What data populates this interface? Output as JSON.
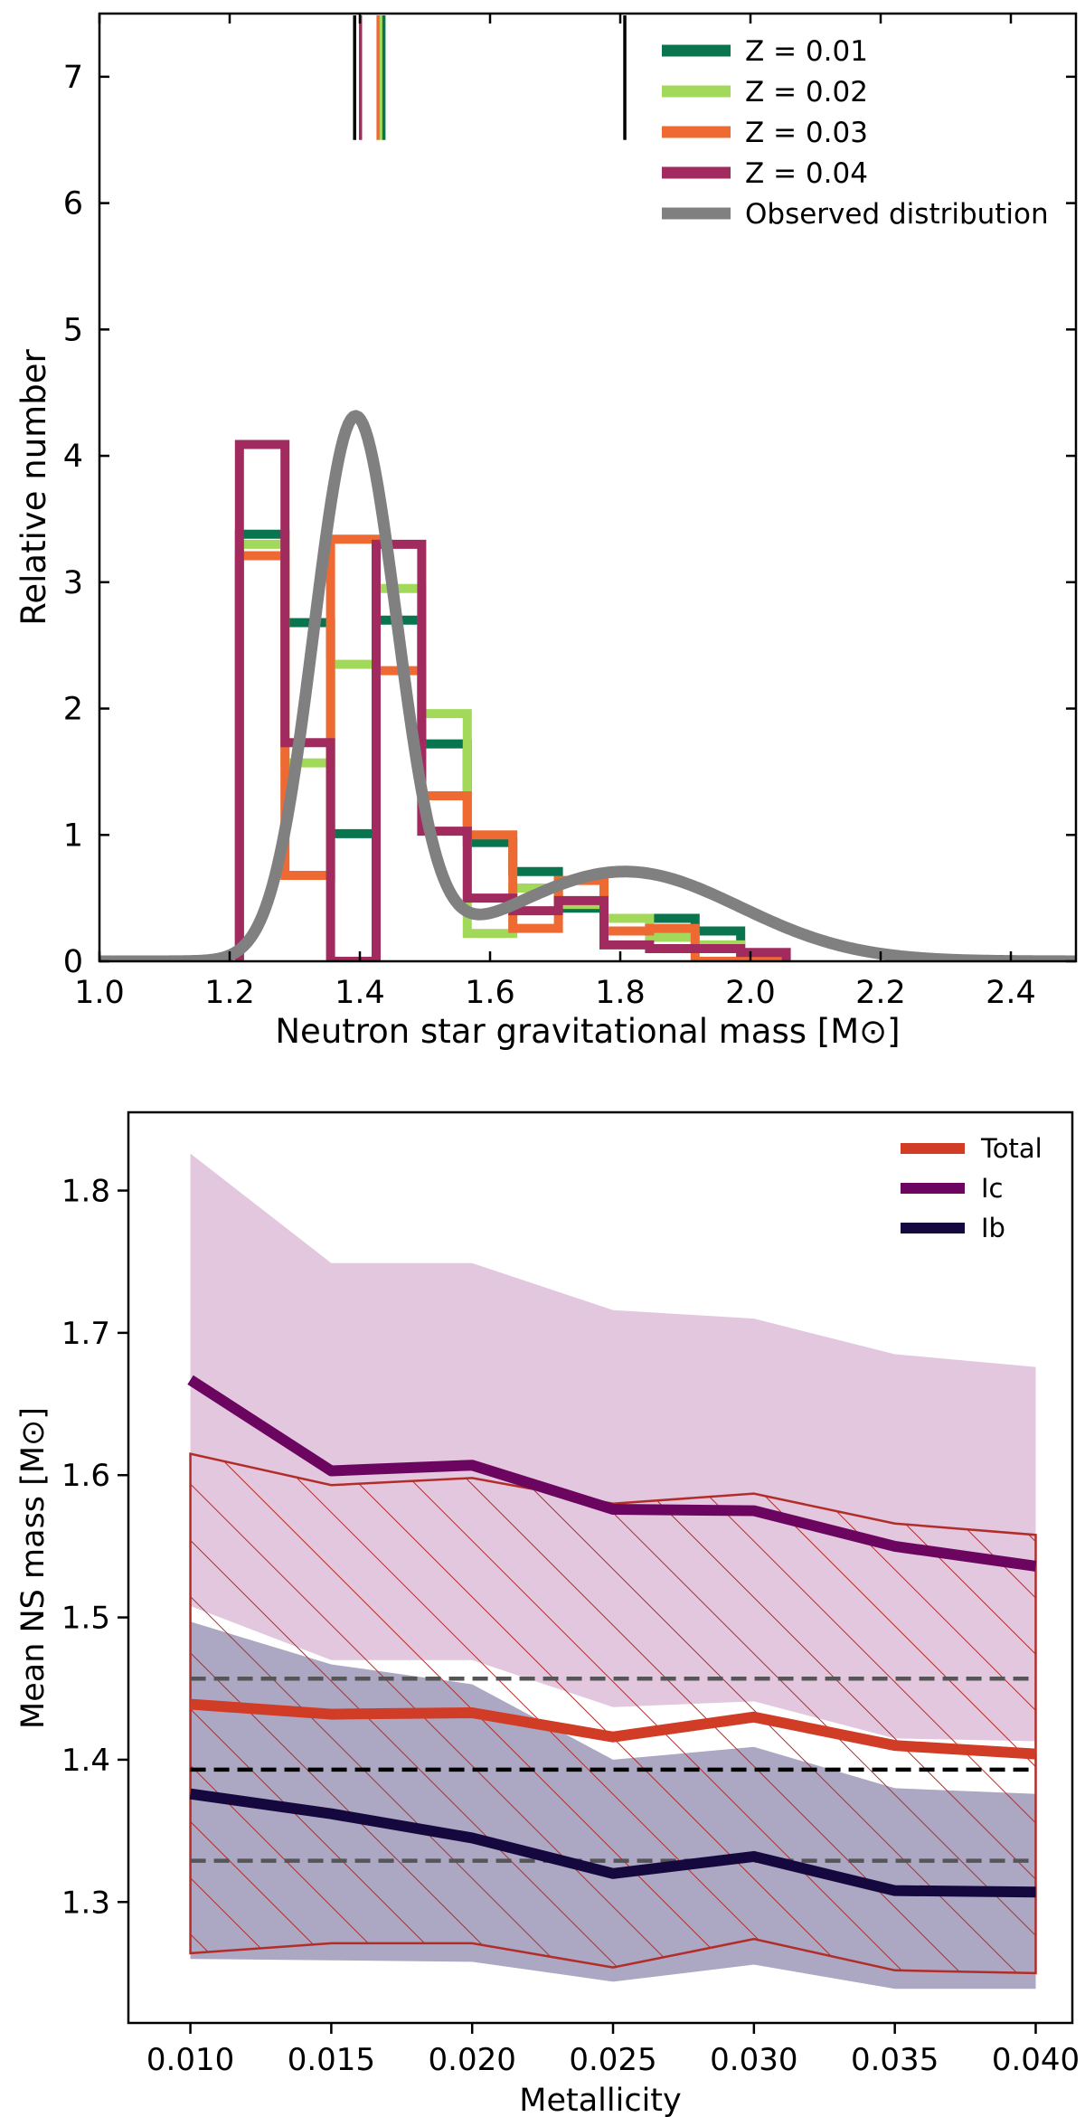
{
  "chart_data": [
    {
      "type": "histogram",
      "xlabel": "Neutron star gravitational mass [M⊙]",
      "ylabel": "Relative number",
      "xlim": [
        1.0,
        2.5
      ],
      "ylim": [
        0,
        7.5
      ],
      "xticks": [
        "1.0",
        "1.2",
        "1.4",
        "1.6",
        "1.8",
        "2.0",
        "2.2",
        "2.4"
      ],
      "yticks": [
        "0",
        "1",
        "2",
        "3",
        "4",
        "5",
        "6",
        "7"
      ],
      "legend_position": "top-right",
      "legend": [
        "Z = 0.01",
        "Z = 0.02",
        "Z = 0.03",
        "Z = 0.04",
        "Observed distribution"
      ],
      "bin_edges": [
        1.215,
        1.285,
        1.355,
        1.425,
        1.495,
        1.565,
        1.635,
        1.705,
        1.775,
        1.845,
        1.915,
        1.985,
        2.055
      ],
      "series": [
        {
          "name": "Z = 0.01",
          "color": "#08754e",
          "values": [
            3.38,
            2.68,
            1.01,
            2.7,
            1.72,
            0.94,
            0.71,
            0.42,
            0.34,
            0.34,
            0.24,
            0.0
          ]
        },
        {
          "name": "Z = 0.02",
          "color": "#a3d95b",
          "values": [
            3.3,
            1.57,
            2.35,
            2.95,
            1.96,
            0.22,
            0.58,
            0.45,
            0.34,
            0.19,
            0.13,
            0.0
          ]
        },
        {
          "name": "Z = 0.03",
          "color": "#ef6a32",
          "values": [
            3.21,
            0.68,
            3.34,
            2.3,
            1.31,
            1.0,
            0.26,
            0.64,
            0.24,
            0.26,
            0.0,
            0.0
          ]
        },
        {
          "name": "Z = 0.04",
          "color": "#a12a5e",
          "values": [
            4.09,
            1.73,
            0.0,
            3.3,
            1.03,
            0.5,
            0.4,
            0.48,
            0.13,
            0.1,
            0.1,
            0.07
          ]
        }
      ],
      "observed_distribution": {
        "name": "Observed distribution",
        "color": "#808080",
        "components": [
          {
            "mean": 1.393,
            "sigma": 0.064,
            "weight": 0.685
          },
          {
            "mean": 1.807,
            "sigma": 0.177,
            "weight": 0.315
          }
        ]
      },
      "marker_lines": [
        {
          "x": 1.392,
          "color": "#000000"
        },
        {
          "x": 1.401,
          "color": "#a12a5e"
        },
        {
          "x": 1.428,
          "color": "#ef6a32"
        },
        {
          "x": 1.433,
          "color": "#a3d95b"
        },
        {
          "x": 1.437,
          "color": "#08754e"
        },
        {
          "x": 1.807,
          "color": "#000000"
        }
      ]
    },
    {
      "type": "line",
      "xlabel": "Metallicity",
      "ylabel": "Mean NS mass [M⊙]",
      "xlim": [
        0.0078,
        0.0413
      ],
      "ylim": [
        1.215,
        1.855
      ],
      "xticks": [
        "0.010",
        "0.015",
        "0.020",
        "0.025",
        "0.030",
        "0.035",
        "0.040"
      ],
      "yticks": [
        "1.3",
        "1.4",
        "1.5",
        "1.6",
        "1.7",
        "1.8"
      ],
      "legend_position": "top-right",
      "legend": [
        "Total",
        "Ic",
        "Ib"
      ],
      "x": [
        0.01,
        0.015,
        0.02,
        0.025,
        0.03,
        0.035,
        0.04
      ],
      "series": [
        {
          "name": "Total",
          "color": "#d13c26",
          "values": [
            1.439,
            1.432,
            1.433,
            1.416,
            1.43,
            1.41,
            1.404
          ]
        },
        {
          "name": "Ic",
          "color": "#6c0560",
          "values": [
            1.667,
            1.603,
            1.607,
            1.576,
            1.575,
            1.55,
            1.536
          ]
        },
        {
          "name": "Ib",
          "color": "#14083e",
          "values": [
            1.376,
            1.362,
            1.345,
            1.32,
            1.332,
            1.308,
            1.307
          ]
        }
      ],
      "bands": [
        {
          "name": "Ic range",
          "color": "#e2c7de",
          "upper": [
            1.826,
            1.749,
            1.749,
            1.716,
            1.71,
            1.685,
            1.676
          ],
          "lower": [
            1.508,
            1.47,
            1.47,
            1.437,
            1.441,
            1.415,
            1.413
          ]
        },
        {
          "name": "Ib range",
          "color": "#aca7c2",
          "upper": [
            1.497,
            1.467,
            1.453,
            1.4,
            1.409,
            1.38,
            1.376
          ],
          "lower": [
            1.26,
            1.259,
            1.258,
            1.244,
            1.256,
            1.239,
            1.239
          ]
        },
        {
          "name": "Total range",
          "color": "#b22d2a",
          "hatched": true,
          "upper": [
            1.615,
            1.593,
            1.598,
            1.58,
            1.587,
            1.566,
            1.558
          ],
          "lower": [
            1.264,
            1.271,
            1.271,
            1.254,
            1.274,
            1.252,
            1.25
          ]
        }
      ],
      "reference_lines": [
        {
          "y": 1.457,
          "color": "#555555"
        },
        {
          "y": 1.393,
          "color": "#000000"
        },
        {
          "y": 1.329,
          "color": "#555555"
        }
      ]
    }
  ]
}
